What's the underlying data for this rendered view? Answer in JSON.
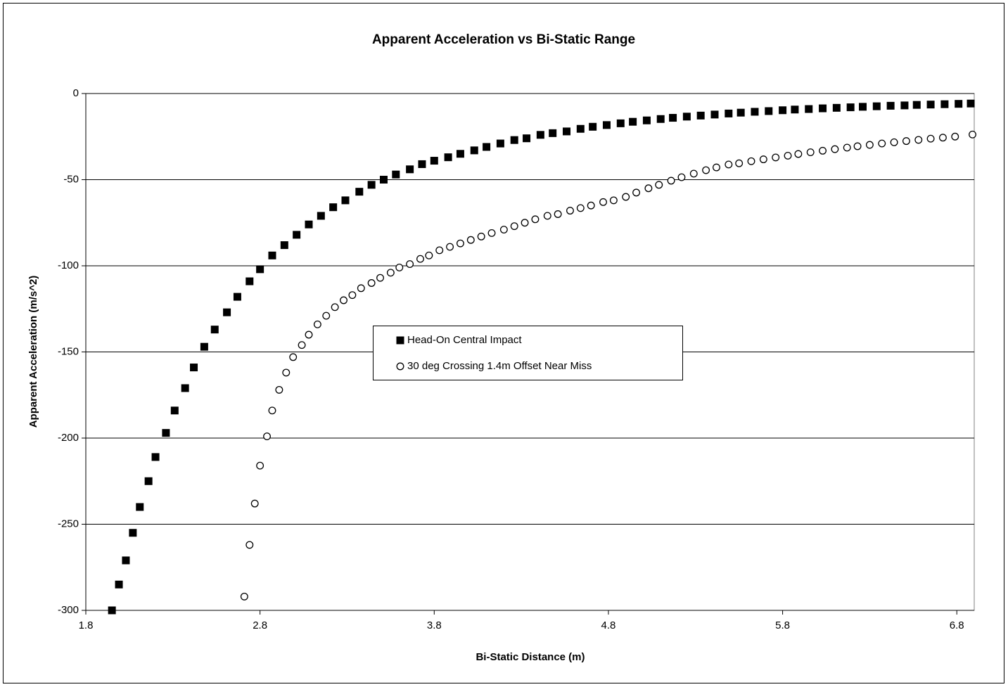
{
  "chart_data": {
    "type": "scatter",
    "title": "Apparent Acceleration vs Bi-Static Range",
    "x_label": "Bi-Static Distance (m)",
    "y_label": "Apparent Acceleration (m/s^2)",
    "xlim": [
      1.8,
      6.9
    ],
    "xticks": [
      1.8,
      2.8,
      3.8,
      4.8,
      5.8,
      6.8
    ],
    "ylim": [
      -300,
      0
    ],
    "yticks": [
      -300,
      -250,
      -200,
      -150,
      -100,
      -50,
      0
    ],
    "grid": true,
    "legend_position": "center",
    "series": [
      {
        "name": "Head-On Central Impact",
        "color": "#000000",
        "marker": "square",
        "x": [
          1.95,
          1.99,
          2.03,
          2.07,
          2.11,
          2.16,
          2.2,
          2.26,
          2.31,
          2.37,
          2.42,
          2.48,
          2.54,
          2.61,
          2.67,
          2.74,
          2.8,
          2.87,
          2.94,
          3.01,
          3.08,
          3.15,
          3.22,
          3.29,
          3.37,
          3.44,
          3.51,
          3.58,
          3.66,
          3.73,
          3.8,
          3.88,
          3.95,
          4.03,
          4.1,
          4.18,
          4.26,
          4.33,
          4.41,
          4.48,
          4.56,
          4.64,
          4.71,
          4.79,
          4.87,
          4.94,
          5.02,
          5.1,
          5.17,
          5.25,
          5.33,
          5.41,
          5.49,
          5.56,
          5.64,
          5.72,
          5.8,
          5.87,
          5.95,
          6.03,
          6.11,
          6.19,
          6.26,
          6.34,
          6.42,
          6.5,
          6.57,
          6.65,
          6.73,
          6.81,
          6.88
        ],
        "values": [
          -300,
          -285,
          -271,
          -255,
          -240,
          -225,
          -211,
          -197,
          -184,
          -171,
          -159,
          -147,
          -137,
          -127,
          -118,
          -109,
          -102,
          -94,
          -88,
          -82,
          -76,
          -71,
          -66,
          -62,
          -57,
          -53,
          -50,
          -47,
          -44,
          -41,
          -39,
          -37,
          -35,
          -33,
          -31,
          -29,
          -27,
          -26,
          -24,
          -23,
          -22,
          -20.5,
          -19.3,
          -18.3,
          -17.3,
          -16.4,
          -15.6,
          -14.8,
          -14.1,
          -13.4,
          -12.8,
          -12.2,
          -11.6,
          -11.1,
          -10.6,
          -10.2,
          -9.7,
          -9.3,
          -9.0,
          -8.6,
          -8.3,
          -8.0,
          -7.7,
          -7.4,
          -7.1,
          -6.9,
          -6.6,
          -6.4,
          -6.2,
          -6.0,
          -5.8
        ]
      },
      {
        "name": "30 deg Crossing 1.4m Offset Near Miss",
        "color": "#000000",
        "marker": "circle",
        "x": [
          2.71,
          2.74,
          2.77,
          2.8,
          2.84,
          2.87,
          2.91,
          2.95,
          2.99,
          3.04,
          3.08,
          3.13,
          3.18,
          3.23,
          3.28,
          3.33,
          3.38,
          3.44,
          3.49,
          3.55,
          3.6,
          3.66,
          3.72,
          3.77,
          3.83,
          3.89,
          3.95,
          4.01,
          4.07,
          4.13,
          4.2,
          4.26,
          4.32,
          4.38,
          4.45,
          4.51,
          4.58,
          4.64,
          4.7,
          4.77,
          4.83,
          4.9,
          4.96,
          5.03,
          5.09,
          5.16,
          5.22,
          5.29,
          5.36,
          5.42,
          5.49,
          5.55,
          5.62,
          5.69,
          5.76,
          5.83,
          5.89,
          5.96,
          6.03,
          6.1,
          6.17,
          6.23,
          6.3,
          6.37,
          6.44,
          6.51,
          6.58,
          6.65,
          6.72,
          6.79,
          6.89
        ],
        "values": [
          -292,
          -262,
          -238,
          -216,
          -199,
          -184,
          -172,
          -162,
          -153,
          -146,
          -140,
          -134,
          -129,
          -124,
          -120,
          -117,
          -113,
          -110,
          -107,
          -104,
          -101,
          -99,
          -96,
          -94,
          -91,
          -89,
          -87,
          -85,
          -83,
          -81,
          -79,
          -77,
          -75,
          -73,
          -71,
          -70,
          -68,
          -66.5,
          -65,
          -63,
          -62,
          -60,
          -57.5,
          -55,
          -53,
          -50.6,
          -48.6,
          -46.5,
          -44.5,
          -42.9,
          -41.2,
          -40.5,
          -39.3,
          -38.2,
          -37.1,
          -36.1,
          -35.1,
          -34.1,
          -33.2,
          -32.3,
          -31.4,
          -30.6,
          -29.8,
          -29.0,
          -28.3,
          -27.6,
          -26.9,
          -26.2,
          -25.6,
          -25.0,
          -23.8
        ]
      }
    ]
  }
}
